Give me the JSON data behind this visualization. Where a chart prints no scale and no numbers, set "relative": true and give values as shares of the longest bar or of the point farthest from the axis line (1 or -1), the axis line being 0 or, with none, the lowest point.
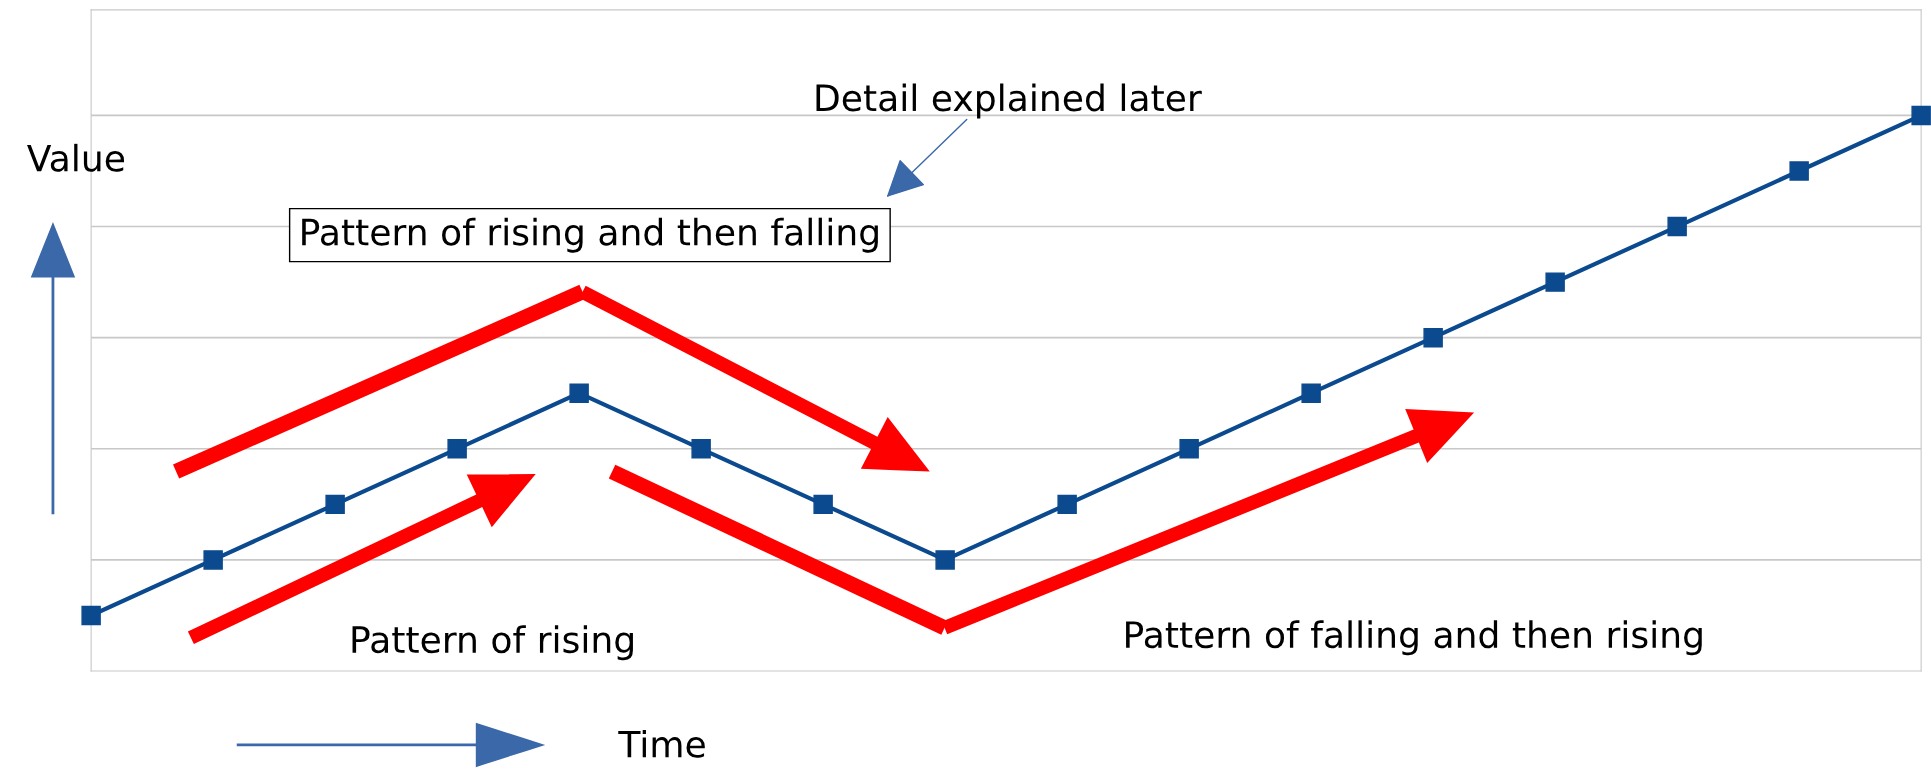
{
  "chart_data": {
    "type": "line",
    "relative": true,
    "xlabel": "Time",
    "ylabel": "Value",
    "categories": [
      null,
      null,
      null,
      null,
      null,
      null,
      null,
      null,
      null,
      null,
      null,
      null,
      null,
      null,
      null,
      null
    ],
    "series": [
      {
        "color": "#0b4a8e",
        "values": [
          0.1,
          0.2,
          0.3,
          0.4,
          0.5,
          0.4,
          0.3,
          0.2,
          0.3,
          0.4,
          0.5,
          0.6,
          0.7,
          0.8,
          0.9,
          1.0
        ]
      }
    ],
    "marker": "square",
    "line_style": "solid",
    "grid": "y",
    "annotations": [
      "Detail explained later",
      "Pattern of rising and then falling",
      "Pattern of rising",
      "Pattern of falling and then rising"
    ]
  }
}
